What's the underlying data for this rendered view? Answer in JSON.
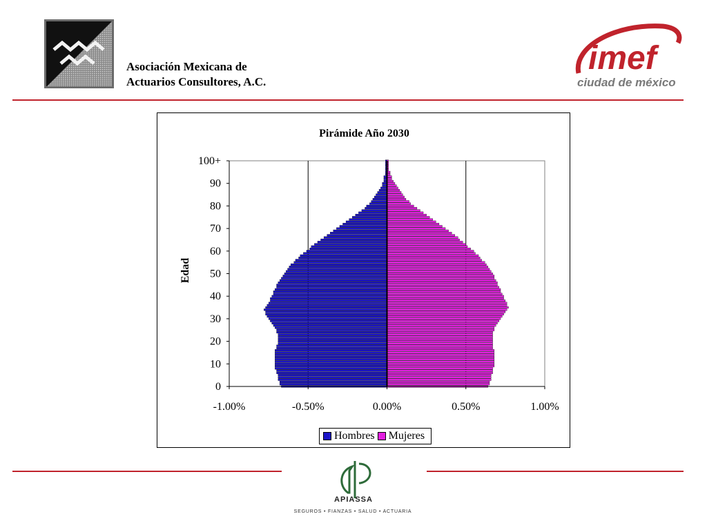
{
  "header": {
    "org_line1": "Asociación Mexicana de",
    "org_line2": "Actuarios Consultores, A.C.",
    "imef_word": "imef",
    "imef_city": "ciudad de méxico"
  },
  "footer": {
    "brand": "APIASSA",
    "tagline": "SEGUROS  •  FIANZAS  •  SALUD  •  ACTUARIA"
  },
  "colors": {
    "hombres": "#1a13c8",
    "mujeres": "#e31ee0",
    "accent": "#c0232c"
  },
  "chart_data": {
    "type": "bar",
    "orientation": "horizontal",
    "title": "Pirámide Año 2030",
    "ylabel": "Edad",
    "xlabel": "",
    "xlim": [
      -0.01,
      0.01
    ],
    "x_ticks": [
      "-1.00%",
      "-0.50%",
      "0.00%",
      "0.50%",
      "1.00%"
    ],
    "y_ticks": [
      "0",
      "10",
      "20",
      "30",
      "40",
      "50",
      "60",
      "70",
      "80",
      "90",
      "100+"
    ],
    "legend_position": "bottom",
    "grid": "vertical",
    "age_start": 0,
    "age_end": 100,
    "series": [
      {
        "name": "Hombres",
        "values": [
          -0.0067,
          -0.0068,
          -0.0068,
          -0.0069,
          -0.0069,
          -0.0069,
          -0.007,
          -0.007,
          -0.0071,
          -0.0071,
          -0.0071,
          -0.0071,
          -0.0071,
          -0.0071,
          -0.0071,
          -0.0071,
          -0.0071,
          -0.007,
          -0.007,
          -0.0069,
          -0.0069,
          -0.0069,
          -0.0069,
          -0.0069,
          -0.007,
          -0.007,
          -0.0071,
          -0.0072,
          -0.0073,
          -0.0074,
          -0.0075,
          -0.0076,
          -0.0077,
          -0.0077,
          -0.0078,
          -0.0077,
          -0.0076,
          -0.0075,
          -0.0074,
          -0.0074,
          -0.0073,
          -0.0072,
          -0.0072,
          -0.0071,
          -0.007,
          -0.007,
          -0.0069,
          -0.0068,
          -0.0067,
          -0.0066,
          -0.0065,
          -0.0064,
          -0.0063,
          -0.0062,
          -0.0061,
          -0.0059,
          -0.0058,
          -0.0056,
          -0.0055,
          -0.0053,
          -0.0051,
          -0.0049,
          -0.0048,
          -0.0046,
          -0.0044,
          -0.0042,
          -0.004,
          -0.0038,
          -0.0036,
          -0.0034,
          -0.0032,
          -0.003,
          -0.0028,
          -0.0026,
          -0.0024,
          -0.0022,
          -0.002,
          -0.0018,
          -0.0016,
          -0.0014,
          -0.0013,
          -0.0011,
          -0.001,
          -0.0009,
          -0.0008,
          -0.0007,
          -0.0006,
          -0.0005,
          -0.0004,
          -0.0003,
          -0.0003,
          -0.0002,
          -0.0002,
          -0.0002,
          -0.0001,
          -0.0001,
          -0.0001,
          -0.0001,
          -0.0001,
          -0.0001,
          -0.0001
        ]
      },
      {
        "name": "Mujeres",
        "values": [
          0.0064,
          0.0065,
          0.0065,
          0.0066,
          0.0066,
          0.0066,
          0.0067,
          0.0067,
          0.0067,
          0.0068,
          0.0068,
          0.0068,
          0.0068,
          0.0068,
          0.0068,
          0.0068,
          0.0068,
          0.0067,
          0.0067,
          0.0067,
          0.0067,
          0.0067,
          0.0067,
          0.0067,
          0.0067,
          0.0068,
          0.0068,
          0.0069,
          0.007,
          0.0071,
          0.0072,
          0.0073,
          0.0074,
          0.0075,
          0.0076,
          0.0077,
          0.0076,
          0.0076,
          0.0075,
          0.0074,
          0.0074,
          0.0073,
          0.0072,
          0.0072,
          0.0071,
          0.007,
          0.007,
          0.0069,
          0.0068,
          0.0068,
          0.0067,
          0.0066,
          0.0065,
          0.0064,
          0.0063,
          0.0062,
          0.006,
          0.0059,
          0.0058,
          0.0056,
          0.0055,
          0.0053,
          0.0051,
          0.005,
          0.0048,
          0.0046,
          0.0045,
          0.0043,
          0.0041,
          0.0039,
          0.0037,
          0.0035,
          0.0033,
          0.0031,
          0.0029,
          0.0027,
          0.0025,
          0.0023,
          0.0021,
          0.0019,
          0.0017,
          0.0015,
          0.0014,
          0.0012,
          0.0011,
          0.001,
          0.0009,
          0.0008,
          0.0007,
          0.0006,
          0.0005,
          0.0004,
          0.0003,
          0.0003,
          0.0002,
          0.0002,
          0.0001,
          0.0001,
          0.0001,
          0.0001,
          0.0001
        ]
      }
    ]
  }
}
